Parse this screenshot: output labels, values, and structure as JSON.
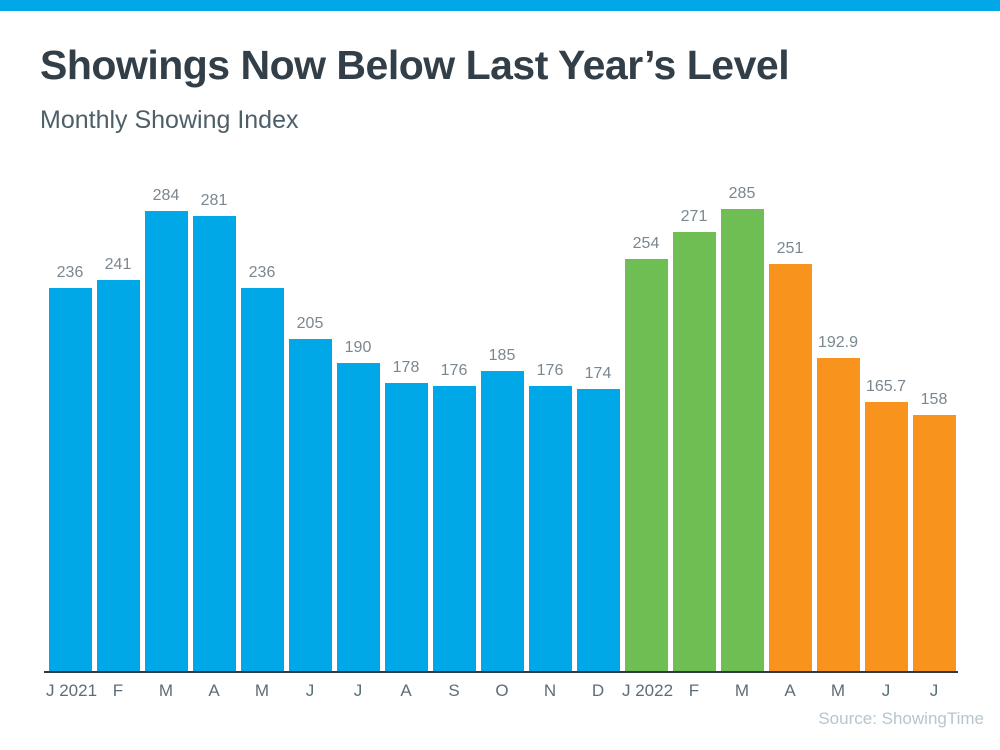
{
  "page": {
    "title": "Showings Now Below Last Year’s Level",
    "subtitle": "Monthly Showing Index",
    "source": "Source: ShowingTime"
  },
  "colors": {
    "blue": "#00a8e8",
    "green": "#6fbe54",
    "orange": "#f8941d",
    "top_strip": "#00a8e8",
    "axis_line": "#2f3b42",
    "title_text": "#333f48",
    "subtitle_text": "#4d5f68",
    "value_label": "#798790",
    "axis_label": "#5d6d78",
    "source_text": "#b7c5ce"
  },
  "chart_data": {
    "type": "bar",
    "title": "Showings Now Below Last Year’s Level",
    "subtitle": "Monthly Showing Index",
    "categories": [
      "J 2021",
      "F",
      "M",
      "A",
      "M",
      "J",
      "J",
      "A",
      "S",
      "O",
      "N",
      "D",
      "J 2022",
      "F",
      "M",
      "A",
      "M",
      "J",
      "J"
    ],
    "values": [
      236,
      241,
      284,
      281,
      236,
      205,
      190,
      178,
      176,
      185,
      176,
      174,
      254,
      271,
      285,
      251,
      192.9,
      165.7,
      158
    ],
    "bar_colors": [
      "blue",
      "blue",
      "blue",
      "blue",
      "blue",
      "blue",
      "blue",
      "blue",
      "blue",
      "blue",
      "blue",
      "blue",
      "green",
      "green",
      "green",
      "orange",
      "orange",
      "orange",
      "orange"
    ],
    "ylim": [
      0,
      285
    ],
    "xlabel": "",
    "ylabel": "",
    "grid": false,
    "legend": false,
    "value_labels": "above-bars",
    "source": "Source: ShowingTime"
  }
}
